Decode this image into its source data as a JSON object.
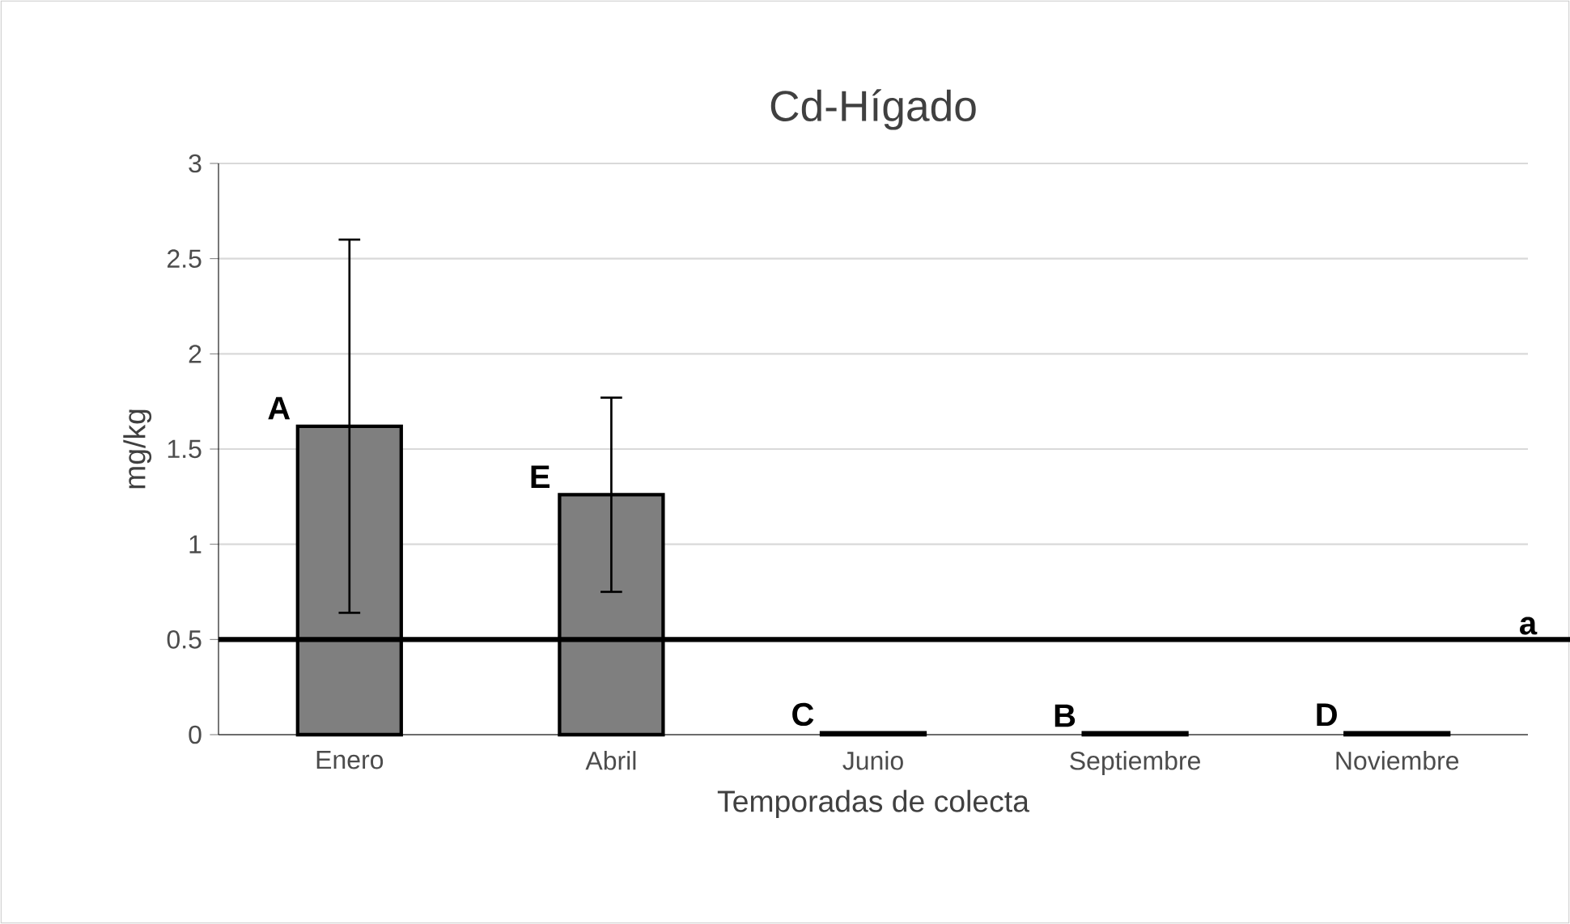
{
  "chart_data": {
    "type": "bar",
    "title": "Cd-Hígado",
    "xlabel": "Temporadas de colecta",
    "ylabel": "mg/kg",
    "categories": [
      "Enero",
      "Abril",
      "Junio",
      "Septiembre",
      "Noviembre"
    ],
    "values": [
      1.62,
      1.26,
      0.01,
      0.01,
      0.01
    ],
    "errors": [
      0.98,
      0.51,
      null,
      null,
      null
    ],
    "color": "#7f7f7f",
    "ylim": [
      0,
      3
    ],
    "yticks": [
      0,
      0.5,
      1,
      1.5,
      2,
      2.5,
      3
    ],
    "grid": "y",
    "ref_lines": [
      {
        "axis": "y",
        "value": 0.5,
        "label": "a",
        "color": "#000000"
      }
    ],
    "annotations": [
      {
        "text": "A",
        "x": "Enero",
        "y": 1.62
      },
      {
        "text": "E",
        "x": "Abril",
        "y": 1.26
      },
      {
        "text": "C",
        "x": "Junio",
        "y": 0.01
      },
      {
        "text": "B",
        "x": "Septiembre",
        "y": 0.005
      },
      {
        "text": "D",
        "x": "Noviembre",
        "y": 0.01
      }
    ]
  }
}
